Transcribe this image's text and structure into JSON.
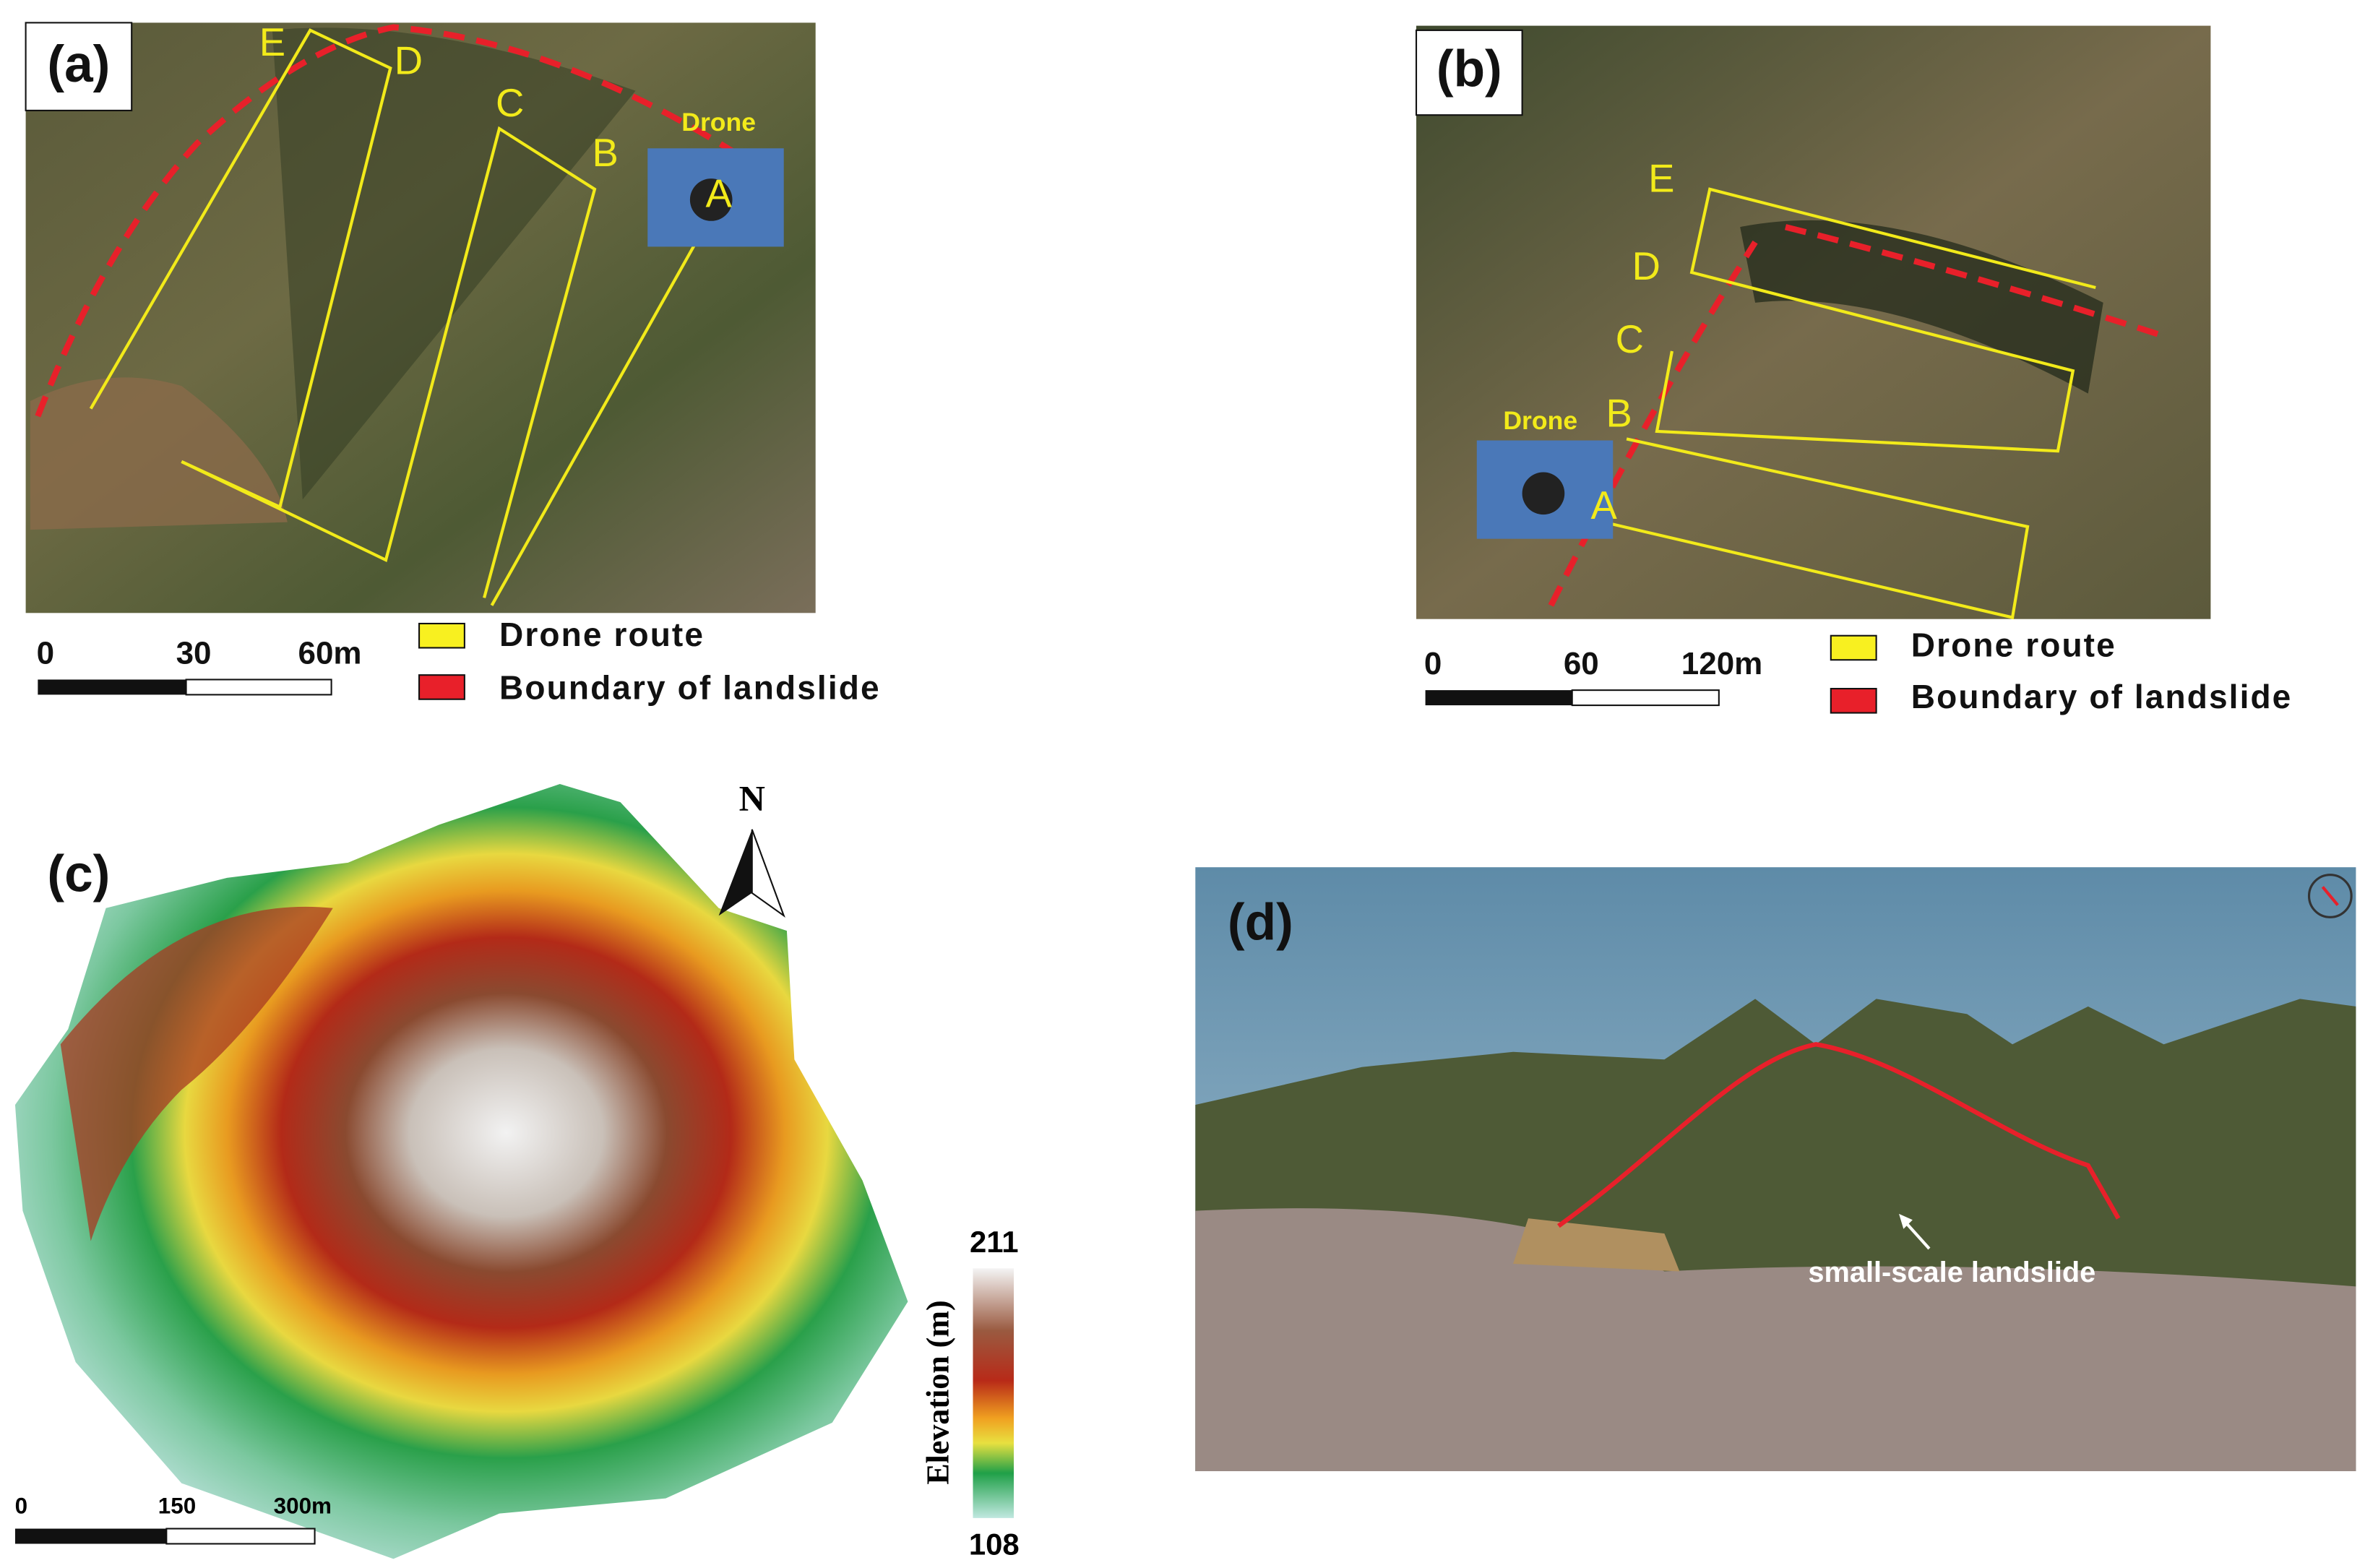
{
  "panels": [
    {
      "label": "(a)",
      "route_labels": [
        "A",
        "B",
        "C",
        "D",
        "E"
      ],
      "drone": "Drone",
      "scale_bar": [
        "0",
        "30",
        "60m"
      ],
      "legend": [
        "Drone route",
        "Boundary of landslide"
      ]
    },
    {
      "label": "(b)",
      "route_labels": [
        "A",
        "B",
        "C",
        "D",
        "E"
      ],
      "drone": "Drone",
      "scale_bar": [
        "0",
        "60",
        "120m"
      ],
      "legend": [
        "Drone route",
        "Boundary of landslide"
      ]
    },
    {
      "label": "(c)",
      "north": "N",
      "scale_bar": [
        "0",
        "150",
        "300m"
      ],
      "colorbar": {
        "title": "Elevation (m)",
        "max": "211",
        "min": "108"
      }
    },
    {
      "label": "(d)",
      "annotation": "small-scale landslide"
    }
  ]
}
